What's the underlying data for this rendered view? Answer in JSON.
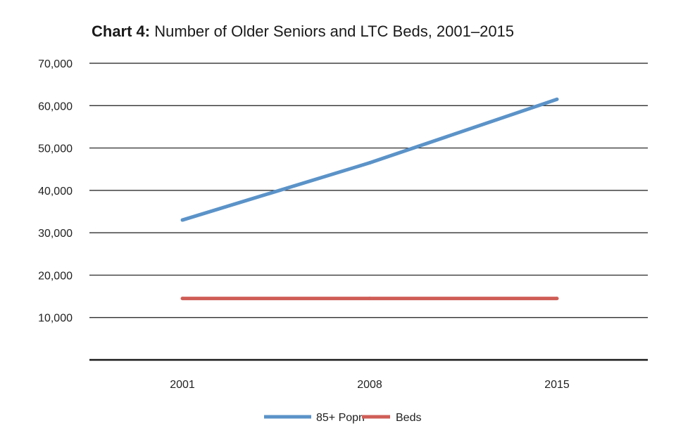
{
  "chart_data": {
    "type": "line",
    "title_prefix": "Chart 4:",
    "title": "Number of Older Seniors and LTC Beds, 2001–2015",
    "xlabel": "",
    "ylabel": "",
    "categories": [
      "2001",
      "2008",
      "2015"
    ],
    "ylim": [
      0,
      70000
    ],
    "yticks": [
      10000,
      20000,
      30000,
      40000,
      50000,
      60000,
      70000
    ],
    "ytick_labels": [
      "10,000",
      "20,000",
      "30,000",
      "40,000",
      "50,000",
      "60,000",
      "70,000"
    ],
    "grid": true,
    "legend_position": "bottom",
    "series": [
      {
        "name": "85+ Popn",
        "color": "#5b93c8",
        "values": [
          33000,
          46500,
          61500
        ]
      },
      {
        "name": "Beds",
        "color": "#cf5e57",
        "values": [
          14500,
          14500,
          14500
        ]
      }
    ]
  }
}
